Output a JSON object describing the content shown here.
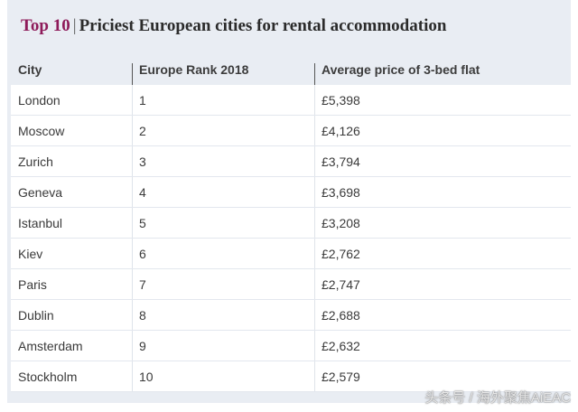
{
  "title": {
    "accent": "Top 10",
    "separator": "|",
    "text": "Priciest European cities for rental accommodation"
  },
  "columns": [
    "City",
    "Europe Rank 2018",
    "Average price of 3-bed flat"
  ],
  "rows": [
    {
      "city": "London",
      "rank": "1",
      "price": "£5,398"
    },
    {
      "city": "Moscow",
      "rank": "2",
      "price": "£4,126"
    },
    {
      "city": "Zurich",
      "rank": "3",
      "price": "£3,794"
    },
    {
      "city": "Geneva",
      "rank": "4",
      "price": "£3,698"
    },
    {
      "city": "Istanbul",
      "rank": "5",
      "price": "£3,208"
    },
    {
      "city": "Kiev",
      "rank": "6",
      "price": "£2,762"
    },
    {
      "city": "Paris",
      "rank": "7",
      "price": "£2,747"
    },
    {
      "city": "Dublin",
      "rank": "8",
      "price": "£2,688"
    },
    {
      "city": "Amsterdam",
      "rank": "9",
      "price": "£2,632"
    },
    {
      "city": "Stockholm",
      "rank": "10",
      "price": "£2,579"
    }
  ],
  "watermark": "头条号 / 海外聚焦AiEAC",
  "colors": {
    "accent": "#8e1b5a",
    "header_bg": "#e9edf3",
    "row_bg": "#ffffff"
  }
}
